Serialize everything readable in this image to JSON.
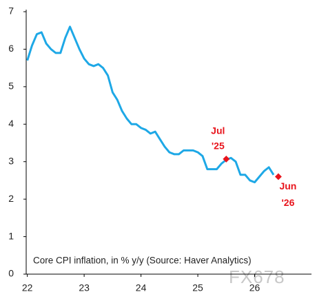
{
  "chart_data": {
    "type": "line",
    "note": "Core CPI inflation, in % y/y (Source: Haver Analytics)",
    "watermark": "FX678",
    "x": [
      22,
      22.083,
      22.167,
      22.25,
      22.333,
      22.417,
      22.5,
      22.583,
      22.667,
      22.75,
      22.833,
      22.917,
      23,
      23.083,
      23.167,
      23.25,
      23.333,
      23.417,
      23.5,
      23.583,
      23.667,
      23.75,
      23.833,
      23.917,
      24,
      24.083,
      24.167,
      24.25,
      24.333,
      24.417,
      24.5,
      24.583,
      24.667,
      24.75,
      24.833,
      24.917,
      25,
      25.083,
      25.167,
      25.25,
      25.333,
      25.417,
      25.5,
      25.583,
      25.667,
      25.75,
      25.833,
      25.917,
      26,
      26.083,
      26.167,
      26.25,
      26.333
    ],
    "series": [
      {
        "color": "#1ea8e6",
        "values": [
          5.7,
          6.1,
          6.4,
          6.45,
          6.15,
          6.0,
          5.9,
          5.9,
          6.3,
          6.6,
          6.3,
          6.0,
          5.75,
          5.6,
          5.55,
          5.6,
          5.5,
          5.3,
          4.85,
          4.65,
          4.35,
          4.15,
          4.0,
          4.0,
          3.9,
          3.85,
          3.75,
          3.8,
          3.6,
          3.4,
          3.25,
          3.2,
          3.2,
          3.3,
          3.3,
          3.3,
          3.25,
          3.15,
          2.8,
          2.8,
          2.8,
          2.95,
          3.05,
          3.1,
          3.0,
          2.65,
          2.65,
          2.5,
          2.45,
          2.6,
          2.75,
          2.85,
          2.65
        ]
      }
    ],
    "highlights": {
      "color": "#e8141c",
      "points": [
        {
          "x": 25.5,
          "y": 3.07,
          "label": [
            "Jul",
            "'25"
          ]
        },
        {
          "x": 26.417,
          "y": 2.6,
          "label": [
            "Jun",
            "'26"
          ]
        }
      ]
    },
    "xlim": [
      21.98,
      27.0
    ],
    "xticks": [
      22,
      23,
      24,
      25,
      26
    ],
    "ylim": [
      0,
      7
    ],
    "yticks": [
      0,
      1,
      2,
      3,
      4,
      5,
      6,
      7
    ]
  }
}
